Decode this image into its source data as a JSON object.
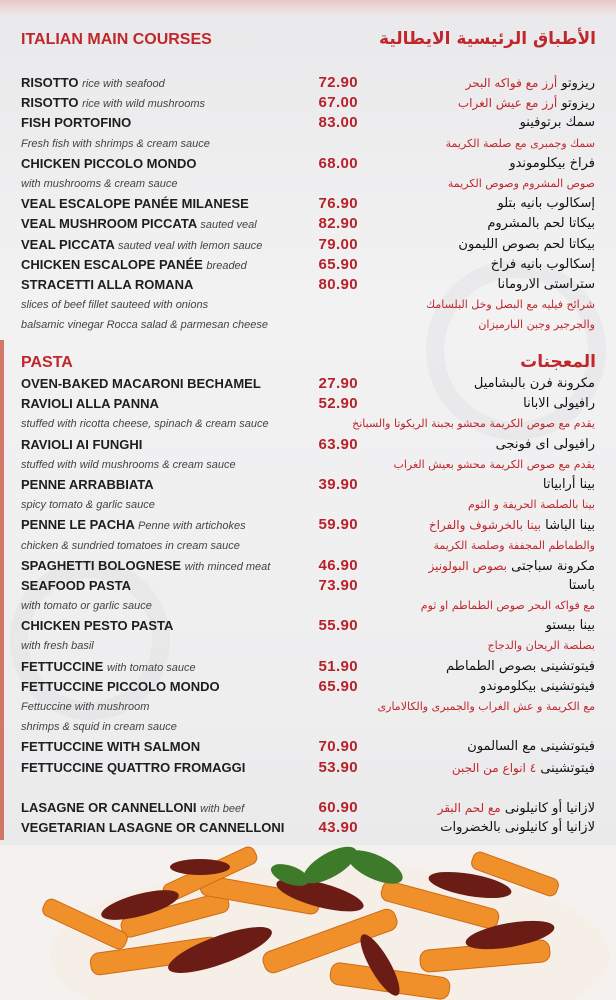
{
  "main_courses": {
    "title_en": "ITALIAN MAIN COURSES",
    "title_ar": "الأطباق الرئيسية الايطالية",
    "groups": [
      [
        {
          "type": "item",
          "name": "RISOTTO",
          "note": "rice with seafood",
          "price": "72.90",
          "ar_name": "ريزوتو",
          "ar_note": "أرز مع فواكه البحر"
        },
        {
          "type": "item",
          "name": "RISOTTO",
          "note": "rice with wild mushrooms",
          "price": "67.00",
          "ar_name": "ريزوتو",
          "ar_note": "أرز مع عيش الغراب"
        },
        {
          "type": "item",
          "name": "FISH PORTOFINO",
          "price": "83.00",
          "ar_name": "سمك برتوفينو"
        },
        {
          "type": "desc",
          "text": "Fresh fish with shrimps & cream sauce",
          "ar": "سمك وجمبرى مع صلصة الكريمة"
        },
        {
          "type": "item",
          "name": "CHICKEN PICCOLO MONDO",
          "price": "68.00",
          "ar_name": "فراخ بيكلوموندو"
        },
        {
          "type": "desc",
          "text": "with mushrooms & cream sauce",
          "ar": "صوص المشروم وصوص الكريمة"
        },
        {
          "type": "item",
          "name": "VEAL ESCALOPE PANÉE MILANESE",
          "price": "76.90",
          "ar_name": "إسكالوب بانيه بتلو"
        },
        {
          "type": "item",
          "name": "VEAL MUSHROOM PICCATA",
          "note": "sauted veal",
          "price": "82.90",
          "ar_name": "بيكاتا لحم بالمشروم"
        },
        {
          "type": "item",
          "name": "VEAL PICCATA",
          "note": "sauted veal with lemon sauce",
          "price": "79.00",
          "ar_name": "بيكاتا لحم بصوص الليمون"
        },
        {
          "type": "item",
          "name": "CHICKEN ESCALOPE PANÉE",
          "note": "breaded",
          "price": "65.90",
          "ar_name": "إسكالوب بانيه فراخ"
        },
        {
          "type": "item",
          "name": "STRACETTI ALLA ROMANA",
          "price": "80.90",
          "ar_name": "ستراستى الارومانا"
        },
        {
          "type": "desc",
          "text": "slices of beef fillet sauteed with onions",
          "ar": "شرائح فيليه مع البصل وخل البلسامك"
        },
        {
          "type": "desc",
          "text": "balsamic vinegar Rocca salad & parmesan cheese",
          "ar": "والجرجير وجبن البارميزان"
        }
      ]
    ]
  },
  "pasta": {
    "title_en": "PASTA",
    "title_ar": "المعجنات",
    "groups": [
      [
        {
          "type": "item",
          "name": "OVEN-BAKED MACARONI BECHAMEL",
          "price": "27.90",
          "ar_name": "مكرونة فرن بالبشاميل"
        },
        {
          "type": "item",
          "name": "RAVIOLI ALLA PANNA",
          "price": "52.90",
          "ar_name": "رافيولى الابانا"
        },
        {
          "type": "desc",
          "text": "stuffed with ricotta cheese, spinach & cream sauce",
          "ar": "يقدم مع صوص الكريمة محشو بجبنة الريكوتا والسبانخ"
        },
        {
          "type": "item",
          "name": "RAVIOLI AI FUNGHI",
          "price": "63.90",
          "ar_name": "رافيولى اى فونجى"
        },
        {
          "type": "desc",
          "text": "stuffed with wild mushrooms & cream sauce",
          "ar": "يقدم مع صوص الكريمة محشو بعيش الغراب"
        },
        {
          "type": "item",
          "name": "PENNE ARRABBIATA",
          "price": "39.90",
          "ar_name": "بينا أرابياتا"
        },
        {
          "type": "desc",
          "text": "spicy tomato & garlic sauce",
          "ar": "بينا بالصلصة الحريفة و الثوم"
        },
        {
          "type": "item",
          "name": "PENNE LE PACHA",
          "note": "Penne with artichokes",
          "price": "59.90",
          "ar_name": "بينا الباشا",
          "ar_note": "بينا بالخرشوف والفراخ"
        },
        {
          "type": "desc",
          "text": "chicken & sundried tomatoes in cream sauce",
          "ar": "والطماطم المجففة وصلصة الكريمة"
        },
        {
          "type": "item",
          "name": "SPAGHETTI BOLOGNESE",
          "note": "with minced meat",
          "price": "46.90",
          "ar_name": "مكرونة سباجتى",
          "ar_note": "بصوص البولونيز"
        },
        {
          "type": "item",
          "name": "SEAFOOD PASTA",
          "price": "73.90",
          "ar_name": "باستا"
        },
        {
          "type": "desc",
          "text": "with tomato or garlic sauce",
          "ar": "مع فواكه البحر  صوص الطماطم او ثوم"
        },
        {
          "type": "item",
          "name": "CHICKEN PESTO PASTA",
          "price": "55.90",
          "ar_name": "بينا بيستو"
        },
        {
          "type": "desc",
          "text": "with fresh basil",
          "ar": "بصلصة الريحان والدجاج"
        },
        {
          "type": "item",
          "name": "FETTUCCINE",
          "note": "with tomato sauce",
          "price": "51.90",
          "ar_name": "فيتوتشينى بصوص الطماطم"
        },
        {
          "type": "item",
          "name": "FETTUCCINE PICCOLO MONDO",
          "price": "65.90",
          "ar_name": "فيتوتشينى بيكلوموندو"
        },
        {
          "type": "desc",
          "text": "Fettuccine with mushroom",
          "ar": "مع الكريمة و عش الغراب والجمبرى والكالامارى"
        },
        {
          "type": "desc",
          "text": " shrimps & squid in cream sauce",
          "ar": ""
        },
        {
          "type": "item",
          "name": "FETTUCCINE WITH SALMON",
          "price": "70.90",
          "ar_name": "فيتوتشينى مع السالمون"
        },
        {
          "type": "item",
          "name": "FETTUCCINE QUATTRO FROMAGGI",
          "price": "53.90",
          "ar_name": "فيتوتشينى",
          "ar_note": "٤ انواع من الجبن"
        }
      ],
      [
        {
          "type": "item",
          "name": "LASAGNE OR CANNELLONI",
          "note": "with beef",
          "price": "60.90",
          "ar_name": "لازانيا  أو كانيلونى",
          "ar_note": "مع لحم البقر"
        },
        {
          "type": "item",
          "name": "VEGETARIAN LASAGNE OR CANNELLONI",
          "price": "43.90",
          "ar_name": "لازانيا أو كانيلونى بالخضروات"
        }
      ]
    ]
  },
  "colors": {
    "accent": "#c0272d",
    "price": "#b5222a",
    "text": "#1e1e1e"
  },
  "photo": {
    "icon": "penne-pasta-photo"
  }
}
